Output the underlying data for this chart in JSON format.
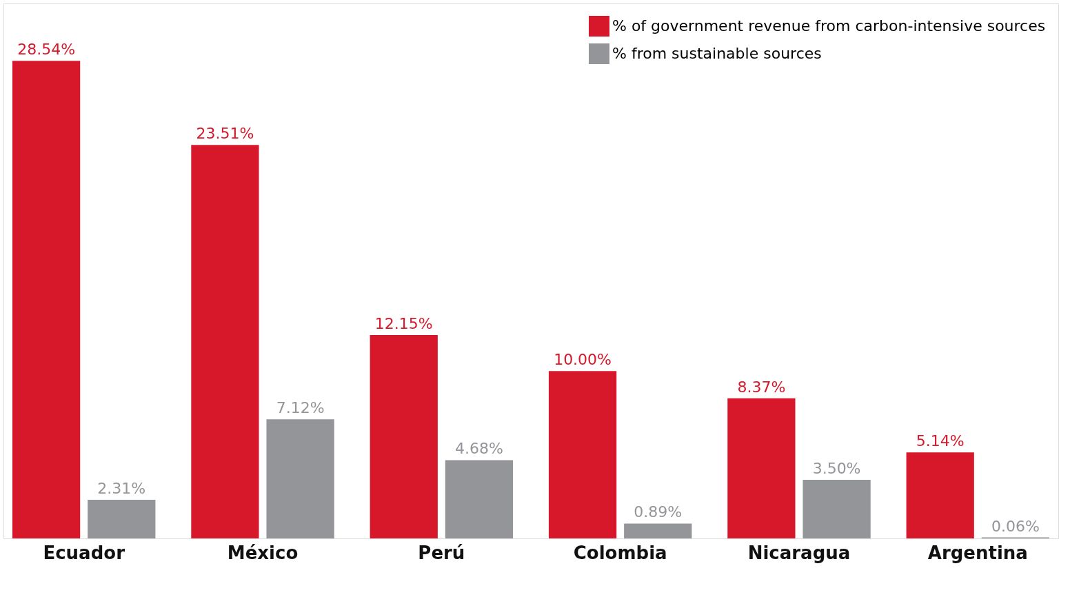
{
  "chart_data": {
    "type": "bar",
    "categories": [
      "Ecuador",
      "México",
      "Perú",
      "Colombia",
      "Nicaragua",
      "Argentina"
    ],
    "series": [
      {
        "name": "% of government revenue from carbon-intensive sources",
        "color": "#d7182a",
        "values": [
          28.54,
          23.51,
          12.15,
          10.0,
          8.37,
          5.14
        ],
        "value_labels": [
          "28.54%",
          "23.51%",
          "12.15%",
          "10.00%",
          "8.37%",
          "5.14%"
        ]
      },
      {
        "name": "% from sustainable sources",
        "color": "#939598",
        "values": [
          2.31,
          7.12,
          4.68,
          0.89,
          3.5,
          0.06
        ],
        "value_labels": [
          "2.31%",
          "7.12%",
          "4.68%",
          "0.89%",
          "3.50%",
          "0.06%"
        ]
      }
    ],
    "legend": "top right",
    "grid": false
  }
}
